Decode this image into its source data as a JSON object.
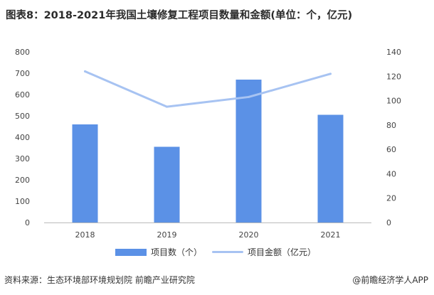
{
  "title": "图表8：2018-2021年我国土壤修复工程项目数量和金额(单位：个，亿元)",
  "source": "资料来源：生态环境部环境规划院 前瞻产业研究院",
  "brand": "@前瞻经济学人APP",
  "colors": {
    "bar": "#5b91e6",
    "line": "#a7c3f2",
    "axis": "#bbbbbb"
  },
  "chart_data": {
    "type": "bar",
    "categories": [
      "2018",
      "2019",
      "2020",
      "2021"
    ],
    "series": [
      {
        "name": "项目数（个）",
        "type": "bar",
        "axis": "left",
        "values": [
          460,
          355,
          670,
          505
        ]
      },
      {
        "name": "项目金额（亿元）",
        "type": "line",
        "axis": "right",
        "values": [
          124,
          95,
          103,
          122
        ]
      }
    ],
    "ylim_left": [
      0,
      800
    ],
    "yticks_left": [
      "0",
      "100",
      "200",
      "300",
      "400",
      "500",
      "600",
      "700",
      "800"
    ],
    "ylim_right": [
      0,
      140
    ],
    "yticks_right": [
      "0",
      "20",
      "40",
      "60",
      "80",
      "100",
      "120",
      "140"
    ],
    "grid": false,
    "legend": "bottom"
  }
}
